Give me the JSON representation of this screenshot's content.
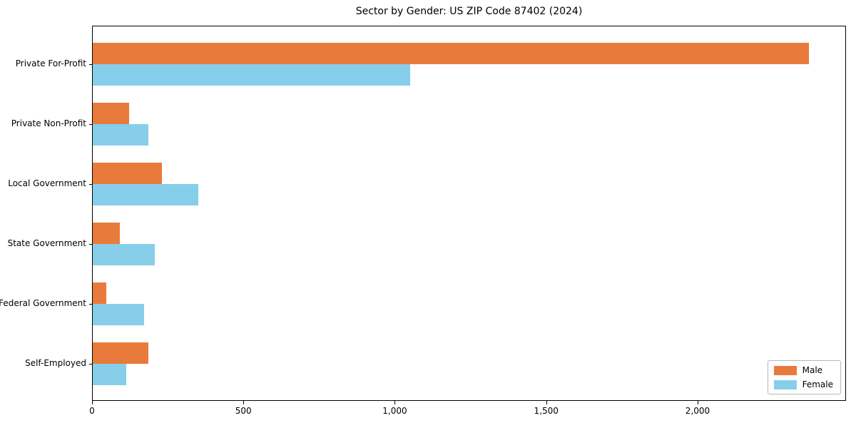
{
  "chart_data": {
    "type": "bar",
    "orientation": "horizontal",
    "title": "Sector by Gender: US ZIP Code 87402 (2024)",
    "xlabel": "",
    "ylabel": "",
    "categories": [
      "Private For-Profit",
      "Private Non-Profit",
      "Local Government",
      "State Government",
      "Federal Government",
      "Self-Employed"
    ],
    "series": [
      {
        "name": "Male",
        "color": "#e87b3c",
        "values": [
          2370,
          120,
          230,
          90,
          45,
          185
        ]
      },
      {
        "name": "Female",
        "color": "#87ceeb",
        "values": [
          1050,
          185,
          350,
          205,
          170,
          110
        ]
      }
    ],
    "xlim": [
      0,
      2490
    ],
    "xticks": [
      0,
      500,
      1000,
      1500,
      2000
    ],
    "xtick_labels": [
      "0",
      "500",
      "1,000",
      "1,500",
      "2,000"
    ],
    "grid": false,
    "legend_position": "lower right"
  },
  "legend": {
    "items": [
      {
        "label": "Male",
        "color": "#e87b3c"
      },
      {
        "label": "Female",
        "color": "#87ceeb"
      }
    ]
  }
}
